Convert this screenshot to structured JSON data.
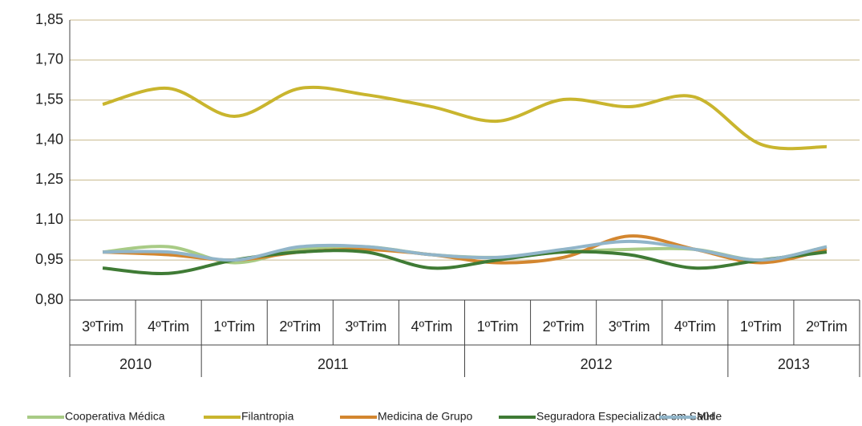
{
  "chart_data": {
    "type": "line",
    "categories": [
      "3ºTrim",
      "4ºTrim",
      "1ºTrim",
      "2ºTrim",
      "3ºTrim",
      "4ºTrim",
      "1ºTrim",
      "2ºTrim",
      "3ºTrim",
      "4ºTrim",
      "1ºTrim",
      "2ºTrim"
    ],
    "groups": [
      {
        "label": "2010",
        "span": 2
      },
      {
        "label": "2011",
        "span": 4
      },
      {
        "label": "2012",
        "span": 4
      },
      {
        "label": "2013",
        "span": 2
      }
    ],
    "series": [
      {
        "name": "Cooperativa Médica",
        "color": "#a8cb85",
        "values": [
          0.98,
          1.0,
          0.94,
          0.99,
          1.0,
          0.97,
          0.96,
          0.98,
          0.99,
          0.99,
          0.95,
          1.0
        ]
      },
      {
        "name": "Filantropia",
        "color": "#c9b52e",
        "values": [
          1.534,
          1.594,
          1.489,
          1.594,
          1.57,
          1.525,
          1.471,
          1.552,
          1.525,
          1.561,
          1.384,
          1.375
        ]
      },
      {
        "name": "Medicina de Grupo",
        "color": "#d3862f",
        "values": [
          0.98,
          0.97,
          0.95,
          0.98,
          0.99,
          0.97,
          0.94,
          0.96,
          1.04,
          0.99,
          0.94,
          0.99
        ]
      },
      {
        "name": "Seguradora Especializada em Saúde",
        "color": "#3f7b35",
        "values": [
          0.92,
          0.9,
          0.95,
          0.98,
          0.98,
          0.92,
          0.95,
          0.98,
          0.97,
          0.92,
          0.95,
          0.98
        ]
      },
      {
        "name": "MH",
        "color": "#91b5c9",
        "values": [
          0.98,
          0.98,
          0.95,
          1.0,
          1.0,
          0.97,
          0.96,
          0.99,
          1.02,
          0.99,
          0.95,
          1.0
        ]
      }
    ],
    "ylim": [
      0.8,
      1.85
    ],
    "yticks": [
      {
        "value": 0.8,
        "label": "0,80"
      },
      {
        "value": 0.95,
        "label": "0,95"
      },
      {
        "value": 1.1,
        "label": "1,10"
      },
      {
        "value": 1.25,
        "label": "1,25"
      },
      {
        "value": 1.4,
        "label": "1,40"
      },
      {
        "value": 1.55,
        "label": "1,55"
      },
      {
        "value": 1.7,
        "label": "1,70"
      },
      {
        "value": 1.85,
        "label": "1,85"
      }
    ],
    "grid": true
  }
}
